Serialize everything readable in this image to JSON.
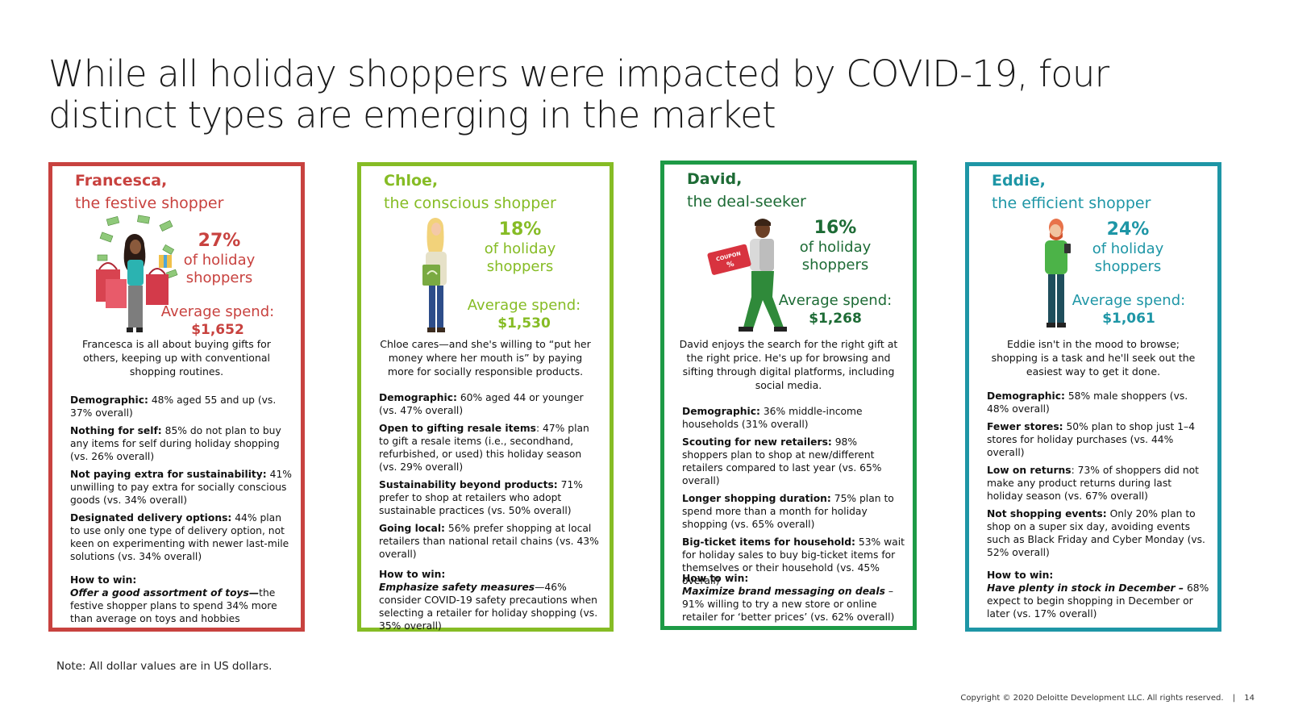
{
  "title": "While all holiday shoppers were impacted by COVID-19, four distinct types are emerging in the market",
  "colors": {
    "festive": "#c8423f",
    "conscious": "#86bc25",
    "deal": "#1d9a46",
    "efficient": "#1e96a6"
  },
  "cards": [
    {
      "name": "Francesca,",
      "subtitle": "the festive shopper",
      "percent": "27%",
      "of_line1": "of holiday",
      "of_line2": "shoppers",
      "spend_label": "Average spend:",
      "spend_value": "$1,652",
      "description": "Francesca is all about buying gifts for others, keeping up with conventional shopping routines.",
      "points": [
        {
          "label": "Demographic:",
          "text": " 48% aged 55 and up (vs. 37% overall)"
        },
        {
          "label": "Nothing for self:",
          "text": " 85% do not plan to buy any items for self during holiday shopping (vs. 26% overall)"
        },
        {
          "label": "Not paying extra for sustainability:",
          "text": " 41% unwilling to pay extra for socially conscious goods (vs. 34% overall)"
        },
        {
          "label": "Designated delivery options:",
          "text": " 44% plan to use only one type of delivery option, not keen on experimenting with newer last-mile solutions (vs. 34% overall)"
        }
      ],
      "how_label": "How to win:",
      "how_lead": "Offer a good assortment of toys—",
      "how_text": "the festive shopper plans to spend 34% more than average on toys and hobbies"
    },
    {
      "name": "Chloe,",
      "subtitle": "the conscious shopper",
      "percent": "18%",
      "of_line1": "of holiday",
      "of_line2": "shoppers",
      "spend_label": "Average spend:",
      "spend_value": "$1,530",
      "description": "Chloe cares—and she's willing to “put her money where her mouth is” by paying more for socially responsible products.",
      "points": [
        {
          "label": "Demographic:",
          "text": " 60% aged 44 or younger (vs. 47% overall)"
        },
        {
          "label": "Open to gifting resale items",
          "text": ": 47% plan to gift a resale items (i.e., secondhand, refurbished, or used) this holiday season (vs. 29% overall)"
        },
        {
          "label": "Sustainability beyond products:",
          "text": " 71% prefer to shop at retailers who adopt sustainable practices (vs. 50% overall)"
        },
        {
          "label": "Going local:",
          "text": " 56% prefer shopping at local retailers than national retail chains (vs. 43% overall)"
        }
      ],
      "how_label": "How to win:",
      "how_lead": "Emphasize safety measures",
      "how_text": "—46% consider COVID-19 safety precautions when selecting a retailer for holiday shopping (vs. 35% overall)"
    },
    {
      "name": "David,",
      "subtitle": "the deal-seeker",
      "percent": "16%",
      "of_line1": "of holiday",
      "of_line2": "shoppers",
      "spend_label": "Average spend:",
      "spend_value": "$1,268",
      "coupon_text": "COUPON",
      "coupon_pct": "%",
      "description": "David enjoys the search for the right gift at the right price. He's up for browsing and sifting through digital platforms, including social media.",
      "points": [
        {
          "label": "Demographic:",
          "text": " 36% middle-income households (31% overall)"
        },
        {
          "label": "Scouting for new retailers:",
          "text": " 98% shoppers plan to shop at new/different retailers compared to last year (vs. 65% overall)"
        },
        {
          "label": "Longer shopping duration:",
          "text": " 75% plan to spend more than a month for holiday shopping (vs. 65% overall)"
        },
        {
          "label": "Big-ticket items for household:",
          "text": " 53% wait for holiday sales to buy big-ticket items for themselves or their household (vs. 45% overall)"
        }
      ],
      "how_label": "How to win:",
      "how_lead": "Maximize brand messaging on deals",
      "how_text": " – 91% willing to try a new store or online retailer for ‘better prices’ (vs. 62% overall)"
    },
    {
      "name": "Eddie,",
      "subtitle": "the efficient shopper",
      "percent": "24%",
      "of_line1": "of holiday",
      "of_line2": "shoppers",
      "spend_label": "Average spend:",
      "spend_value": "$1,061",
      "description": "Eddie isn't in the mood to browse; shopping is a task and he'll seek out the easiest way to get it done.",
      "points": [
        {
          "label": "Demographic:",
          "text": " 58% male shoppers (vs. 48% overall)"
        },
        {
          "label": "Fewer stores:",
          "text": " 50% plan to shop just 1–4 stores for holiday purchases (vs. 44% overall)"
        },
        {
          "label": "Low on returns",
          "text": ": 73%  of shoppers did not make any product returns during last holiday season (vs. 67% overall)"
        },
        {
          "label": "Not shopping events:",
          "text": " Only 20% plan to shop on a super six day, avoiding events such as Black Friday and Cyber Monday (vs. 52% overall)"
        }
      ],
      "how_label": "How to win:",
      "how_lead": "Have plenty in stock in December –",
      "how_text": " 68% expect to begin shopping in December or later (vs. 17% overall)"
    }
  ],
  "note": "Note: All dollar values are in US dollars.",
  "footer": {
    "copyright": "Copyright © 2020 Deloitte Development LLC. All rights reserved.",
    "separator": "|",
    "page": "14"
  }
}
